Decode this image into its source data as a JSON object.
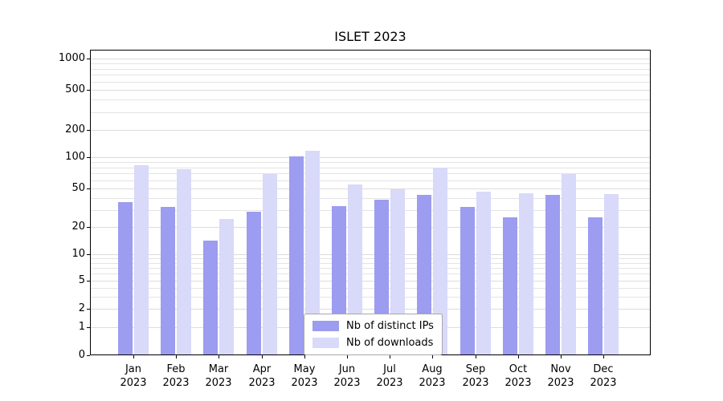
{
  "chart_data": {
    "type": "bar",
    "title": "ISLET 2023",
    "y_scale": "symlog",
    "ylim": [
      0,
      1000
    ],
    "y_ticks": [
      0,
      1,
      2,
      5,
      10,
      20,
      50,
      100,
      200,
      500,
      1000
    ],
    "categories": [
      "Jan",
      "Feb",
      "Mar",
      "Apr",
      "May",
      "Jun",
      "Jul",
      "Aug",
      "Sep",
      "Oct",
      "Nov",
      "Dec"
    ],
    "x_year_label": "2023",
    "grid": true,
    "legend_position": "lower center",
    "series": [
      {
        "name": "Nb of distinct IPs",
        "color": "#9c9cf0",
        "values": [
          36,
          32,
          14,
          29,
          102,
          33,
          38,
          43,
          32,
          25,
          43,
          25
        ]
      },
      {
        "name": "Nb of downloads",
        "color": "#d9d9f9",
        "values": [
          83,
          77,
          24,
          69,
          117,
          55,
          49,
          79,
          46,
          45,
          69,
          44
        ]
      }
    ]
  }
}
